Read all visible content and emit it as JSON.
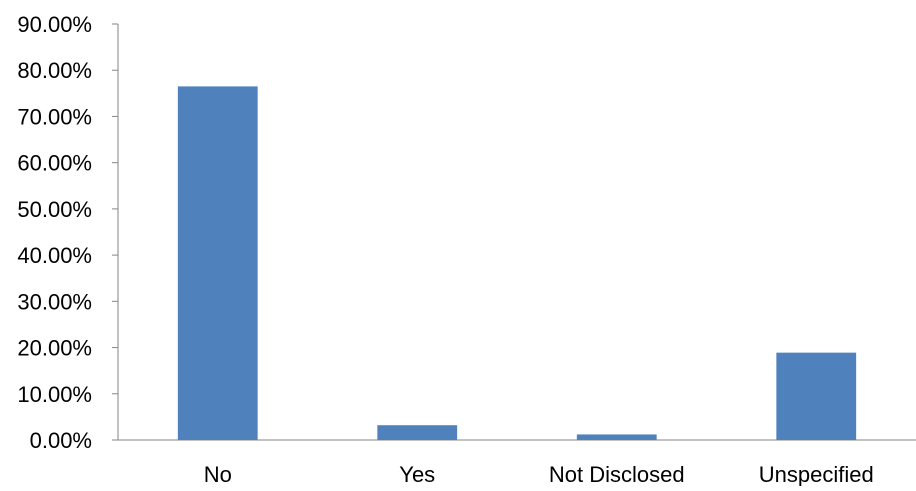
{
  "chart_data": {
    "type": "bar",
    "categories": [
      "No",
      "Yes",
      "Not Disclosed",
      "Unspecified"
    ],
    "values": [
      76.5,
      3.2,
      1.2,
      18.9
    ],
    "title": "",
    "xlabel": "",
    "ylabel": "",
    "ylim": [
      0,
      90
    ],
    "yticks": [
      "0.00%",
      "10.00%",
      "20.00%",
      "30.00%",
      "40.00%",
      "50.00%",
      "60.00%",
      "70.00%",
      "80.00%",
      "90.00%"
    ],
    "grid": false,
    "legend": "none",
    "bar_color": "#4F81BD"
  }
}
